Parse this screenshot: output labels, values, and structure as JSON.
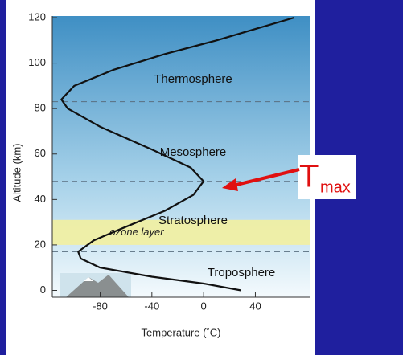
{
  "chart_data": {
    "type": "line",
    "x_label": "Temperature (˚C)",
    "y_label": "Altitude (km)",
    "x": [
      29,
      0,
      -40,
      -80,
      -95,
      -97,
      -85,
      -60,
      -30,
      -8,
      0,
      -10,
      -40,
      -80,
      -105,
      -110,
      -100,
      -70,
      -30,
      10,
      40,
      70
    ],
    "values": [
      0,
      3,
      6,
      10,
      14,
      17,
      22,
      28,
      35,
      42,
      48,
      54,
      62,
      72,
      80,
      84,
      90,
      97,
      104,
      110,
      115,
      120
    ],
    "color": "#111111",
    "xlim": [
      -117,
      82
    ],
    "xticks": [
      -80,
      -40,
      0,
      40
    ],
    "ylim": [
      -3,
      120
    ],
    "yticks": [
      0,
      20,
      40,
      60,
      80,
      100,
      120
    ],
    "boundaries": [
      17,
      48,
      83
    ],
    "ozone_layer": {
      "label": "ozone layer",
      "range": [
        20,
        31
      ]
    },
    "layers": [
      "Thermosphere",
      "Mesosphere",
      "Stratosphere",
      "Troposphere"
    ],
    "annotation": {
      "text": "T",
      "subscript": "max"
    }
  }
}
